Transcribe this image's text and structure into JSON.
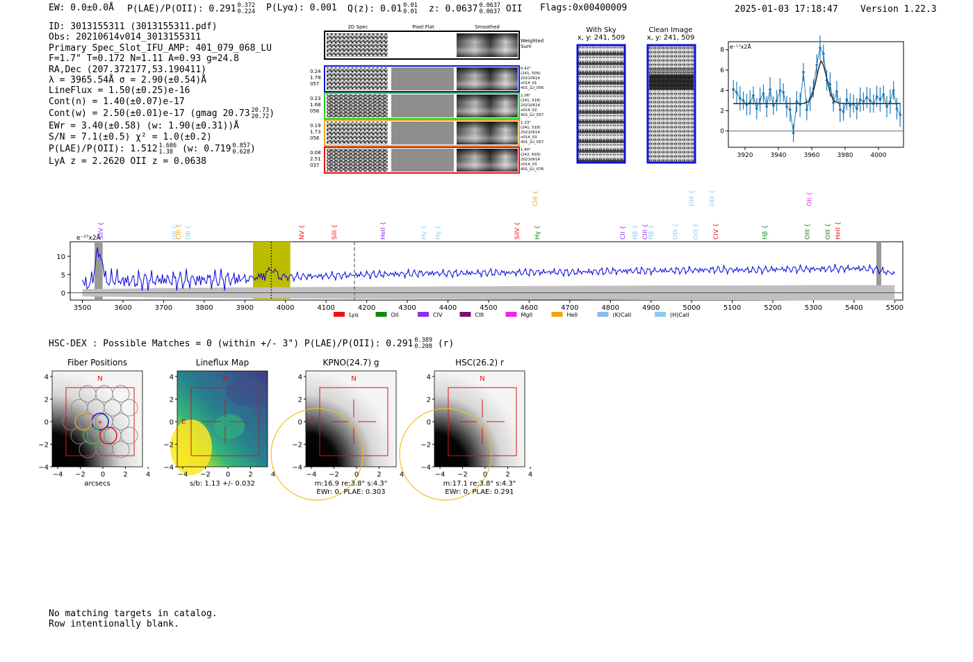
{
  "header": {
    "ew": "EW: 0.0±0.0Å",
    "plae_label": "P(LAE)/P(OII): 0.291",
    "plae_hi": "0.372",
    "plae_lo": "0.224",
    "plya": "P(Lyα): 0.001",
    "qz_label": "Q(z): 0.01",
    "qz_hi": "0.01",
    "qz_lo": "0.01",
    "z_label": "z: 0.0637",
    "z_hi": "0.0637",
    "z_lo": "0.0637",
    "z_line": "OII",
    "flags": "Flags:0x00400009",
    "timestamp": "2025-01-03 17:18:47",
    "version": "Version 1.22.3"
  },
  "info": {
    "id": "ID: 3013155311 (3013155311.pdf)",
    "obs": "Obs: 20210614v014_3013155311",
    "primary": "Primary Spec_Slot_IFU_AMP: 401_079_068_LU",
    "params": "F=1.7\"  T=0.172  N=1.11  A=0.93  g=24.8",
    "radec": "RA,Dec (207.372177,53.190411)",
    "lambda": "λ = 3965.54Å  σ = 2.90(±0.54)Å",
    "lineflux": "LineFlux = 1.50(±0.25)e-16",
    "contn": "Cont(n) = 1.40(±0.07)e-17",
    "contw": "Cont(w) = 2.50(±0.01)e-17 (gmag 20.73",
    "contw_hi": "20.73",
    "contw_lo": "20.72",
    "contw_end": ")",
    "ewr": "EWr = 3.40(±0.58) (w: 1.90(±0.31))Å",
    "sn": "S/N = 7.1(±0.5)  χ² = 1.0(±0.2)",
    "plae": "P(LAE)/P(OII): 1.512",
    "plae_hi": "1.686",
    "plae_lo": "1.38",
    "plae_w": "(w: 0.719",
    "plae_w_hi": "0.857",
    "plae_w_lo": "0.628",
    "plae_end": ")",
    "zline": "LyA z = 2.2620  OII z = 0.0638"
  },
  "cutouts": {
    "col_headers": [
      "2D Spec",
      "Pixel Flat",
      "Smoothed"
    ],
    "weighted_label": [
      "Weighted",
      "Sum"
    ],
    "rows": [
      {
        "color": "#1010d0",
        "stats": [
          "0.24",
          "1.78",
          "057"
        ],
        "meta": [
          "0.42\"",
          "(241, 509)",
          "20210614",
          "v014_01",
          "401_LU_056"
        ]
      },
      {
        "color": "#22cc22",
        "stats": [
          "0.23",
          "1.68",
          "056"
        ],
        "meta": [
          "1.06\"",
          "(241, 518)",
          "20210614",
          "v014_02",
          "401_LU_057"
        ]
      },
      {
        "color": "#f0a020",
        "stats": [
          "0.19",
          "1.73",
          "056"
        ],
        "meta": [
          "1.23\"",
          "(241, 518)",
          "20210614",
          "v014_03",
          "401_LU_057"
        ]
      },
      {
        "color": "#e01010",
        "stats": [
          "0.08",
          "2.51",
          "037"
        ],
        "meta": [
          "1.40\"",
          "(242, 693)",
          "20210614",
          "v014_03",
          "401_LU_076"
        ]
      }
    ]
  },
  "sky_panels": {
    "with_sky_title": "With Sky",
    "with_sky_xy": "x, y: 241, 509",
    "clean_title": "Clean Image",
    "clean_xy": "x, y: 241, 509"
  },
  "hsc_dex": {
    "label": "HSC-DEX : Possible Matches = 0 (within +/- 3\")  P(LAE)/P(OII): 0.291",
    "hi": "0.389",
    "lo": "0.208",
    "end": "(r)"
  },
  "imaging": [
    {
      "title": "Fiber Positions",
      "caption": [
        "arcsecs"
      ]
    },
    {
      "title": "Lineflux Map",
      "caption": [
        "s/b: 1.13 +/- 0.032"
      ]
    },
    {
      "title": "KPNO(24.7) g",
      "caption": [
        "m:16.9  re:3.8\"  s:4.3\"",
        "EWr: 0, PLAE: 0.303"
      ]
    },
    {
      "title": "HSC(26.2) r",
      "caption": [
        "m:17.1  re:3.8\"  s:4.3\"",
        "EWr: 0, PLAE: 0.291"
      ]
    }
  ],
  "imaging_ticks": [
    "4",
    "2",
    "0",
    "−2",
    "−4"
  ],
  "imaging_xticks": [
    "−4",
    "−2",
    "0",
    "2",
    "4"
  ],
  "compass": {
    "n": "N",
    "e": "E"
  },
  "footer": {
    "line1": "No matching targets in catalog.",
    "line2": "Row intentionally blank."
  },
  "chart_data": [
    {
      "type": "line",
      "title": "",
      "ylabel": "e⁻¹⁷x2Å",
      "xlabel": "",
      "xlim": [
        3910,
        4015
      ],
      "ylim": [
        -1.6,
        8.8
      ],
      "xticks": [
        3920,
        3940,
        3960,
        3980,
        4000
      ],
      "yticks": [
        0,
        2,
        4,
        6,
        8
      ],
      "series": [
        {
          "x": [
            3913,
            3915,
            3917,
            3919,
            3921,
            3923,
            3925,
            3927,
            3929,
            3931,
            3933,
            3935,
            3937,
            3939,
            3941,
            3943,
            3945,
            3947,
            3949,
            3951,
            3953,
            3955,
            3957,
            3959,
            3961,
            3963,
            3965,
            3967,
            3969,
            3971,
            3973,
            3975,
            3977,
            3979,
            3981,
            3983,
            3985,
            3987,
            3989,
            3991,
            3993,
            3995,
            3997,
            3999,
            4001,
            4003,
            4005,
            4007,
            4009,
            4011,
            4013
          ],
          "y": [
            4.1,
            3.8,
            3.2,
            3.0,
            2.6,
            2.8,
            3.5,
            2.2,
            3.1,
            3.7,
            2.4,
            4.1,
            2.5,
            3.0,
            4.0,
            3.8,
            2.4,
            2.1,
            -0.2,
            2.9,
            2.6,
            5.8,
            2.1,
            3.2,
            4.2,
            6.5,
            8.2,
            7.6,
            5.0,
            4.6,
            2.8,
            3.9,
            2.1,
            1.9,
            3.1,
            2.5,
            2.7,
            2.2,
            3.1,
            2.9,
            3.3,
            3.0,
            2.7,
            3.4,
            3.1,
            3.6,
            2.4,
            2.9,
            4.0,
            2.2,
            1.6
          ]
        },
        {
          "name": "fit",
          "x": [
            3913,
            3950,
            3955,
            3958,
            3960,
            3962,
            3964,
            3965.5,
            3967,
            3969,
            3971,
            3973,
            3976,
            3980,
            4013
          ],
          "y": [
            2.7,
            2.7,
            2.72,
            2.9,
            3.4,
            4.6,
            6.1,
            6.9,
            6.5,
            5.2,
            3.8,
            3.0,
            2.75,
            2.7,
            2.7
          ]
        }
      ]
    },
    {
      "type": "line",
      "title": "",
      "ylabel": "e⁻¹⁷x2Å",
      "xlabel": "",
      "xlim": [
        3470,
        5520
      ],
      "ylim": [
        -2,
        14
      ],
      "xticks": [
        3500,
        3600,
        3700,
        3800,
        3900,
        4000,
        4100,
        4200,
        4300,
        4400,
        4500,
        4600,
        4700,
        4800,
        4900,
        5000,
        5100,
        5200,
        5300,
        5400,
        5500
      ],
      "yticks": [
        0,
        5,
        10
      ],
      "series": [
        {
          "name": "spectrum",
          "x": [
            3500,
            3520,
            3540,
            3560,
            3580,
            3600,
            3650,
            3700,
            3750,
            3800,
            3850,
            3900,
            3940,
            3965,
            3990,
            4000,
            4050,
            4100,
            4150,
            4200,
            4250,
            4300,
            4350,
            4400,
            4450,
            4500,
            4550,
            4600,
            4650,
            4700,
            4750,
            4800,
            4850,
            4900,
            4950,
            5000,
            5050,
            5100,
            5150,
            5200,
            5250,
            5300,
            5350,
            5400,
            5450,
            5500
          ],
          "y": [
            3,
            2,
            12,
            3,
            4,
            3.2,
            3.4,
            3.6,
            3.5,
            3.6,
            3.7,
            3.8,
            4.4,
            6.6,
            4.2,
            4.3,
            4.5,
            4.6,
            4.8,
            5.0,
            5.1,
            5.2,
            5.4,
            5.3,
            5.4,
            5.5,
            5.5,
            5.6,
            5.7,
            5.6,
            5.8,
            5.9,
            6.0,
            6.0,
            6.1,
            6.2,
            6.3,
            6.3,
            6.2,
            6.4,
            6.5,
            6.5,
            6.6,
            6.7,
            6.5,
            5.2
          ]
        },
        {
          "name": "error",
          "x": [
            3500,
            3700,
            3900,
            4100,
            4300,
            4500,
            4700,
            4900,
            5100,
            5300,
            5500
          ],
          "y": [
            1.0,
            1.3,
            1.5,
            1.6,
            1.7,
            1.8,
            1.9,
            2.0,
            2.0,
            2.1,
            2.1
          ]
        }
      ],
      "highlight_band": [
        3920,
        4012
      ],
      "line_marker": 3965,
      "redshift_marker": 4170,
      "legend": [
        "Lyα",
        "OII",
        "CIV",
        "CIII",
        "MgII",
        "HeII",
        "(K)CaII",
        "(H)CaII"
      ],
      "legend_colors": [
        "#ee1111",
        "#118811",
        "#8833ee",
        "#771177",
        "#ee22ee",
        "#f5a010",
        "#88bbee",
        "#88ccee"
      ],
      "line_labels": [
        {
          "text": "SiIV",
          "x": 3545,
          "color": "#8833ee"
        },
        {
          "text": "OII",
          "x": 3727,
          "color": "#88ccee"
        },
        {
          "text": "CIII",
          "x": 3737,
          "color": "#f5a010"
        },
        {
          "text": "OII",
          "x": 3760,
          "color": "#88ccee"
        },
        {
          "text": "NV",
          "x": 4040,
          "color": "#ee1111"
        },
        {
          "text": "SiII",
          "x": 4120,
          "color": "#ee1111"
        },
        {
          "text": "HeII",
          "x": 4240,
          "color": "#8833ee"
        },
        {
          "text": "Hγ",
          "x": 4340,
          "color": "#88ccee"
        },
        {
          "text": "Hγ",
          "x": 4375,
          "color": "#88ccee"
        },
        {
          "text": "SiIV",
          "x": 4570,
          "color": "#ee1111"
        },
        {
          "text": "Hγ",
          "x": 4620,
          "color": "#118811"
        },
        {
          "text": "CIII",
          "x": 4615,
          "color": "#f5a010"
        },
        {
          "text": "CII",
          "x": 4830,
          "color": "#8833ee"
        },
        {
          "text": "Hβ",
          "x": 4860,
          "color": "#88ccee"
        },
        {
          "text": "CIII",
          "x": 4885,
          "color": "#8833ee"
        },
        {
          "text": "Hβ",
          "x": 4900,
          "color": "#88ccee"
        },
        {
          "text": "OIII",
          "x": 4960,
          "color": "#88ccee"
        },
        {
          "text": "OIII",
          "x": 5000,
          "color": "#88ccee"
        },
        {
          "text": "OIII",
          "x": 5010,
          "color": "#88ccee"
        },
        {
          "text": "OIII",
          "x": 5050,
          "color": "#88ccee"
        },
        {
          "text": "CIV",
          "x": 5060,
          "color": "#ee1111"
        },
        {
          "text": "Hβ",
          "x": 5180,
          "color": "#118811"
        },
        {
          "text": "OIII",
          "x": 5285,
          "color": "#118811"
        },
        {
          "text": "OII",
          "x": 5290,
          "color": "#ee22ee"
        },
        {
          "text": "OIII",
          "x": 5335,
          "color": "#118811"
        },
        {
          "text": "HeII",
          "x": 5360,
          "color": "#ee1111"
        }
      ]
    }
  ]
}
